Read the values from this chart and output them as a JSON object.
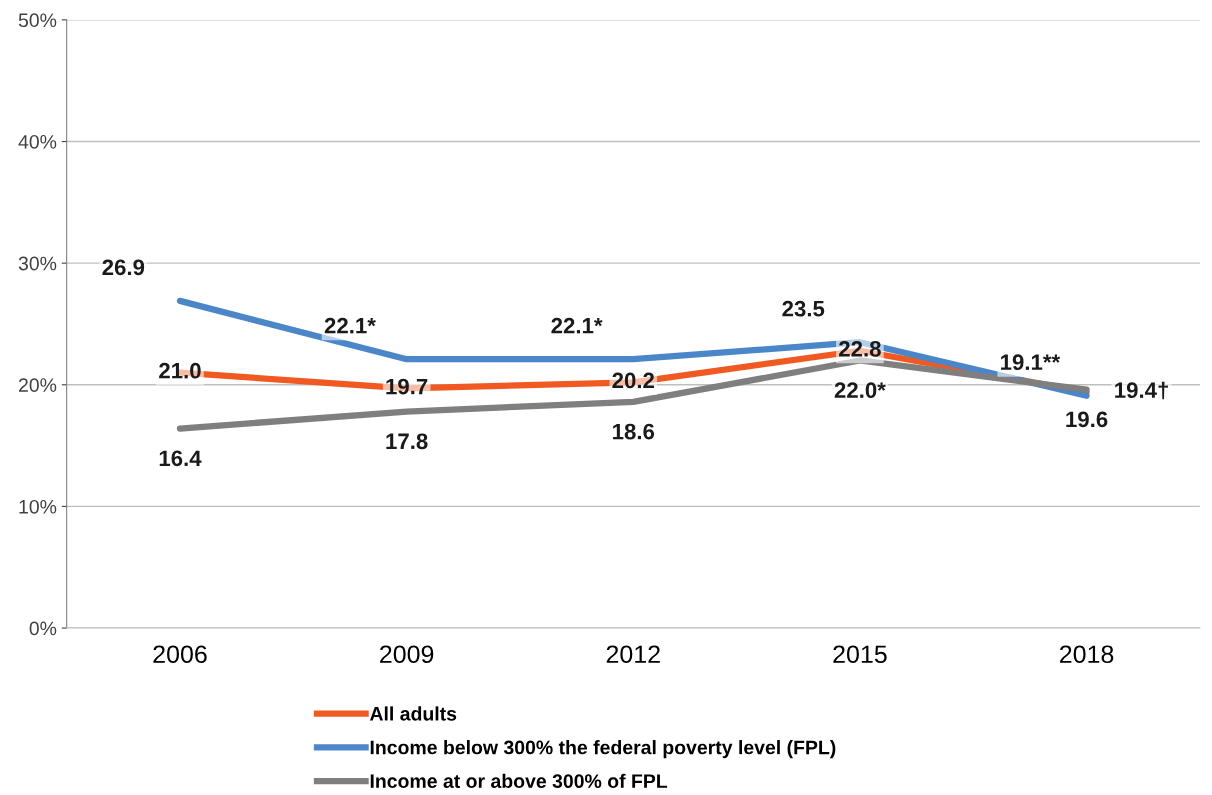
{
  "chart_data": {
    "type": "line",
    "categories": [
      "2006",
      "2009",
      "2012",
      "2015",
      "2018"
    ],
    "series": [
      {
        "name": "All adults",
        "color": "#f05a22",
        "values": [
          21.0,
          19.7,
          20.2,
          22.8,
          19.4
        ],
        "value_labels": [
          "21.0",
          "19.7",
          "20.2",
          "22.8",
          "19.4†"
        ]
      },
      {
        "name": "Income below 300% the federal poverty level (FPL)",
        "color": "#4a86c8",
        "values": [
          26.9,
          22.1,
          22.1,
          23.5,
          19.1
        ],
        "value_labels": [
          "26.9",
          "22.1*",
          "22.1*",
          "23.5",
          "19.1**"
        ]
      },
      {
        "name": "Income at or above 300% of FPL",
        "color": "#7f7f7f",
        "values": [
          16.4,
          17.8,
          18.6,
          22.0,
          19.6
        ],
        "value_labels": [
          "16.4",
          "17.8",
          "18.6",
          "22.0*",
          "19.6"
        ]
      }
    ],
    "ylim": [
      0,
      50
    ],
    "yticks": [
      {
        "value": 0,
        "label": "0%"
      },
      {
        "value": 10,
        "label": "10%"
      },
      {
        "value": 20,
        "label": "20%"
      },
      {
        "value": 30,
        "label": "30%"
      },
      {
        "value": 40,
        "label": "40%"
      },
      {
        "value": 50,
        "label": "50%"
      }
    ],
    "grid": "y",
    "legend": "bottom",
    "marker": "none",
    "line_style": "solid"
  }
}
